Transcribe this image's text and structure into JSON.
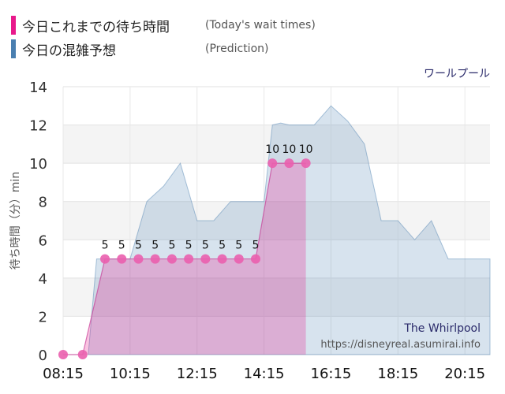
{
  "legend": {
    "items": [
      {
        "label": "今日これまでの待ち時間",
        "sub": "(Today's wait times)",
        "color": "#e8198b"
      },
      {
        "label": "今日の混雑予想",
        "sub": "(Prediction)",
        "color": "#4a7fb0"
      }
    ]
  },
  "chart_data": {
    "type": "area",
    "title": "ワールプール",
    "ylabel": "待ち時間（分）min",
    "ylim": [
      0,
      14
    ],
    "yticks": [
      0,
      2,
      4,
      6,
      8,
      10,
      12,
      14
    ],
    "xlim": [
      "08:15",
      "21:00"
    ],
    "xticks": [
      "08:15",
      "10:15",
      "12:15",
      "14:15",
      "16:15",
      "18:15",
      "20:15"
    ],
    "grid": true,
    "annotations": [
      "The Whirlpool",
      "https://disneyreal.asumirai.info"
    ],
    "series": [
      {
        "name": "今日の混雑予想",
        "color": "#4a7fb0",
        "x": [
          "09:00",
          "09:15",
          "10:00",
          "10:15",
          "10:45",
          "11:15",
          "11:45",
          "12:15",
          "12:45",
          "13:15",
          "13:45",
          "14:15",
          "14:30",
          "14:45",
          "15:00",
          "15:45",
          "16:15",
          "16:45",
          "17:15",
          "17:45",
          "18:15",
          "18:45",
          "19:15",
          "19:45",
          "20:15",
          "21:00"
        ],
        "values": [
          0,
          5,
          5,
          5,
          8,
          8.8,
          10,
          7,
          7,
          8,
          8,
          8,
          12,
          12.1,
          12,
          12,
          13,
          12.2,
          11,
          7,
          7,
          6,
          7,
          5,
          5,
          5
        ]
      },
      {
        "name": "今日これまでの待ち時間",
        "color": "#e8198b",
        "x": [
          "08:15",
          "08:50",
          "09:30",
          "10:00",
          "10:30",
          "11:00",
          "11:30",
          "12:00",
          "12:30",
          "13:00",
          "13:30",
          "14:00",
          "14:30",
          "15:00",
          "15:30"
        ],
        "values": [
          0,
          0,
          5,
          5,
          5,
          5,
          5,
          5,
          5,
          5,
          5,
          5,
          10,
          10,
          10
        ],
        "labels": [
          "",
          "",
          "5",
          "5",
          "5",
          "5",
          "5",
          "5",
          "5",
          "5",
          "5",
          "5",
          "10",
          "10",
          "10"
        ]
      }
    ]
  }
}
